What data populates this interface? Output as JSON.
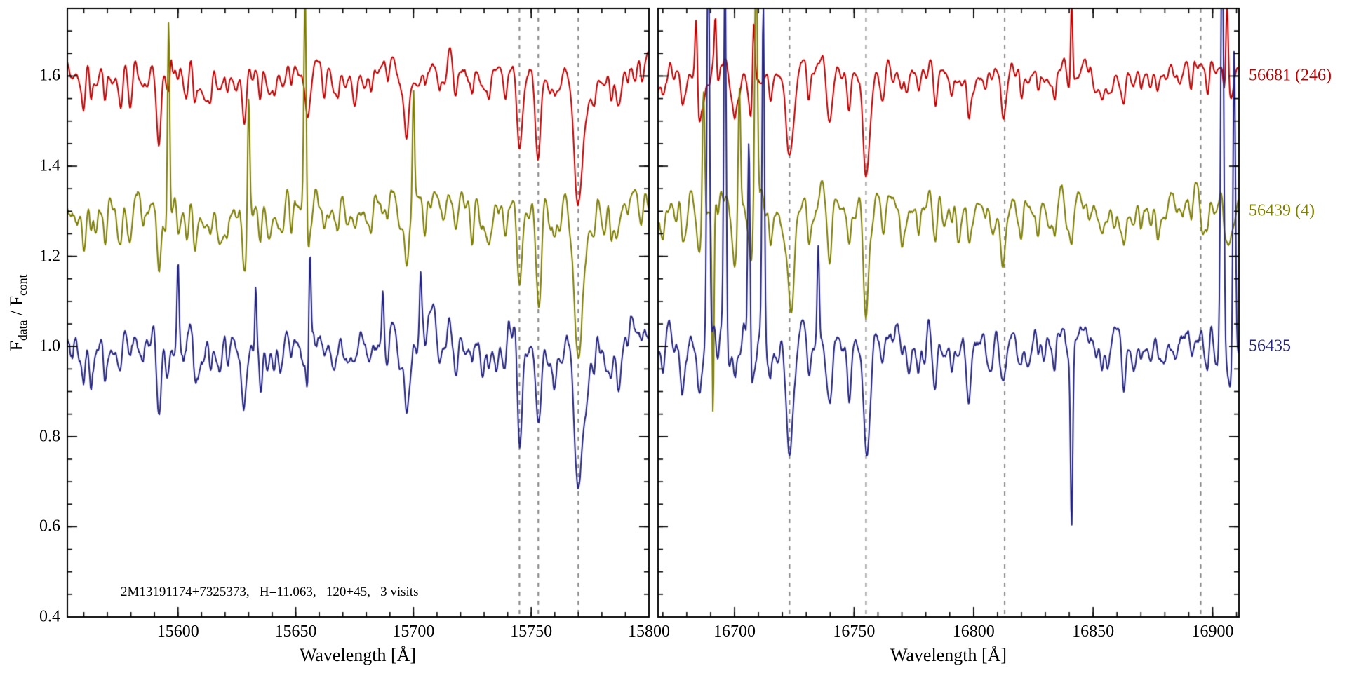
{
  "figure": {
    "annotation": "2M13191174+7325373,   H=11.063,   120+45,   3 visits",
    "xlabel": "Wavelength [Å]",
    "ylabel": {
      "f1": "F",
      "sub1": "data",
      "mid": " / F",
      "sub2": "cont"
    }
  },
  "chart_data": {
    "type": "line",
    "title": "",
    "xlabel": "Wavelength [Å]",
    "ylabel": "F_data / F_cont",
    "ylim": [
      0.4,
      1.75
    ],
    "y_major_ticks": [
      0.4,
      0.6,
      0.8,
      1.0,
      1.2,
      1.4,
      1.6
    ],
    "y_minor_step": 0.05,
    "background": "#ffffff",
    "frame_color": "#000000",
    "dashed_line_color": "#848484",
    "legend_position": "right-outside",
    "panels": [
      {
        "xlim": [
          15553,
          15800
        ],
        "x_major_ticks": [
          15600,
          15650,
          15700,
          15750,
          15800
        ],
        "x_minor_step": 10,
        "dashed_lines": [
          15745,
          15753,
          15770
        ],
        "absorption_features": [
          [
            15560,
            0.06,
            0.7
          ],
          [
            15563,
            0.08,
            0.6
          ],
          [
            15569,
            0.06,
            0.6
          ],
          [
            15576,
            0.04,
            0.6
          ],
          [
            15585,
            0.07,
            0.7
          ],
          [
            15592,
            0.16,
            0.9
          ],
          [
            15600,
            0.06,
            0.6
          ],
          [
            15607,
            0.05,
            0.6
          ],
          [
            15614,
            0.06,
            0.7
          ],
          [
            15621,
            0.05,
            0.6
          ],
          [
            15628,
            0.11,
            0.8
          ],
          [
            15635,
            0.07,
            0.6
          ],
          [
            15641,
            0.04,
            0.6
          ],
          [
            15648,
            0.05,
            0.6
          ],
          [
            15655,
            0.06,
            0.7
          ],
          [
            15662,
            0.07,
            0.7
          ],
          [
            15668,
            0.05,
            0.6
          ],
          [
            15675,
            0.06,
            0.8
          ],
          [
            15682,
            0.04,
            0.6
          ],
          [
            15689,
            0.06,
            0.7
          ],
          [
            15697,
            0.09,
            0.8
          ],
          [
            15705,
            0.05,
            0.6
          ],
          [
            15711,
            0.04,
            0.6
          ],
          [
            15718,
            0.06,
            0.7
          ],
          [
            15725,
            0.05,
            0.6
          ],
          [
            15732,
            0.04,
            0.6
          ],
          [
            15739,
            0.06,
            0.7
          ],
          [
            15745,
            0.19,
            1.1
          ],
          [
            15753,
            0.21,
            1.2
          ],
          [
            15760,
            0.06,
            0.7
          ],
          [
            15770,
            0.29,
            2.0
          ],
          [
            15777,
            0.05,
            0.7
          ],
          [
            15784,
            0.06,
            0.7
          ],
          [
            15791,
            0.05,
            0.6
          ],
          [
            15797,
            0.06,
            0.7
          ]
        ]
      },
      {
        "xlim": [
          16668,
          16911
        ],
        "x_major_ticks": [
          16700,
          16750,
          16800,
          16850,
          16900
        ],
        "x_minor_step": 10,
        "dashed_lines": [
          16723,
          16755,
          16813,
          16895
        ],
        "absorption_features": [
          [
            16663,
            0.05,
            0.6
          ],
          [
            16670,
            0.06,
            0.7
          ],
          [
            16678,
            0.05,
            0.6
          ],
          [
            16685,
            0.07,
            0.7
          ],
          [
            16693,
            0.08,
            0.7
          ],
          [
            16700,
            0.05,
            0.6
          ],
          [
            16707,
            0.06,
            0.6
          ],
          [
            16715,
            0.05,
            0.6
          ],
          [
            16723,
            0.21,
            1.3
          ],
          [
            16731,
            0.07,
            0.7
          ],
          [
            16740,
            0.12,
            0.9
          ],
          [
            16748,
            0.07,
            0.7
          ],
          [
            16755,
            0.23,
            1.3
          ],
          [
            16762,
            0.08,
            0.8
          ],
          [
            16770,
            0.05,
            0.6
          ],
          [
            16777,
            0.04,
            0.6
          ],
          [
            16784,
            0.06,
            0.7
          ],
          [
            16791,
            0.05,
            0.6
          ],
          [
            16798,
            0.04,
            0.6
          ],
          [
            16805,
            0.05,
            0.7
          ],
          [
            16812,
            0.07,
            0.8
          ],
          [
            16820,
            0.05,
            0.6
          ],
          [
            16827,
            0.04,
            0.6
          ],
          [
            16834,
            0.05,
            0.6
          ],
          [
            16841,
            0.06,
            0.7
          ],
          [
            16848,
            0.04,
            0.6
          ],
          [
            16856,
            0.05,
            0.7
          ],
          [
            16863,
            0.04,
            0.6
          ],
          [
            16870,
            0.05,
            0.6
          ],
          [
            16877,
            0.04,
            0.6
          ],
          [
            16884,
            0.05,
            0.7
          ],
          [
            16891,
            0.06,
            0.7
          ],
          [
            16898,
            0.05,
            0.6
          ],
          [
            16905,
            0.05,
            0.6
          ]
        ]
      }
    ],
    "series": [
      {
        "label": "56681 (246)",
        "color": "#c00000",
        "offset": 1.6,
        "noise_amp": 0.012,
        "wiggle_scale": 0.9,
        "feature_scale": 0.95,
        "seed": 101,
        "spikes": [
          [
            [
              15597,
              0.05,
              0.4
            ]
          ],
          [
            [
              16684,
              0.15,
              0.5
            ],
            [
              16692,
              0.1,
              0.4
            ],
            [
              16708,
              0.17,
              0.5
            ],
            [
              16841,
              0.22,
              0.45
            ],
            [
              16906,
              0.2,
              0.5
            ]
          ]
        ]
      },
      {
        "label": "56439 (4)",
        "color": "#7e7e00",
        "offset": 1.3,
        "noise_amp": 0.017,
        "wiggle_scale": 1.0,
        "feature_scale": 1.0,
        "seed": 202,
        "spikes": [
          [
            [
              15596,
              0.44,
              0.45
            ],
            [
              15630,
              0.27,
              0.45
            ],
            [
              15654,
              0.52,
              0.5
            ],
            [
              15700,
              0.27,
              0.45
            ]
          ],
          [
            [
              16687,
              0.33,
              0.5
            ],
            [
              16691,
              -0.46,
              0.4
            ],
            [
              16702,
              0.3,
              0.5
            ],
            [
              16709,
              0.62,
              0.55
            ]
          ]
        ]
      },
      {
        "label": "56435",
        "color": "#232380",
        "offset": 1.0,
        "noise_amp": 0.021,
        "wiggle_scale": 1.05,
        "feature_scale": 1.05,
        "seed": 303,
        "spikes": [
          [
            [
              15600,
              0.22,
              0.45
            ],
            [
              15633,
              0.18,
              0.4
            ],
            [
              15656,
              0.28,
              0.45
            ],
            [
              15687,
              0.1,
              0.4
            ],
            [
              15703,
              0.1,
              0.4
            ]
          ],
          [
            [
              16689,
              0.95,
              0.55
            ],
            [
              16696,
              0.85,
              0.5
            ],
            [
              16706,
              0.5,
              0.5
            ],
            [
              16712,
              0.78,
              0.5
            ],
            [
              16735,
              0.18,
              0.4
            ],
            [
              16841,
              -0.33,
              0.45
            ],
            [
              16904,
              0.95,
              0.6
            ],
            [
              16909,
              0.7,
              0.5
            ]
          ]
        ]
      }
    ]
  }
}
